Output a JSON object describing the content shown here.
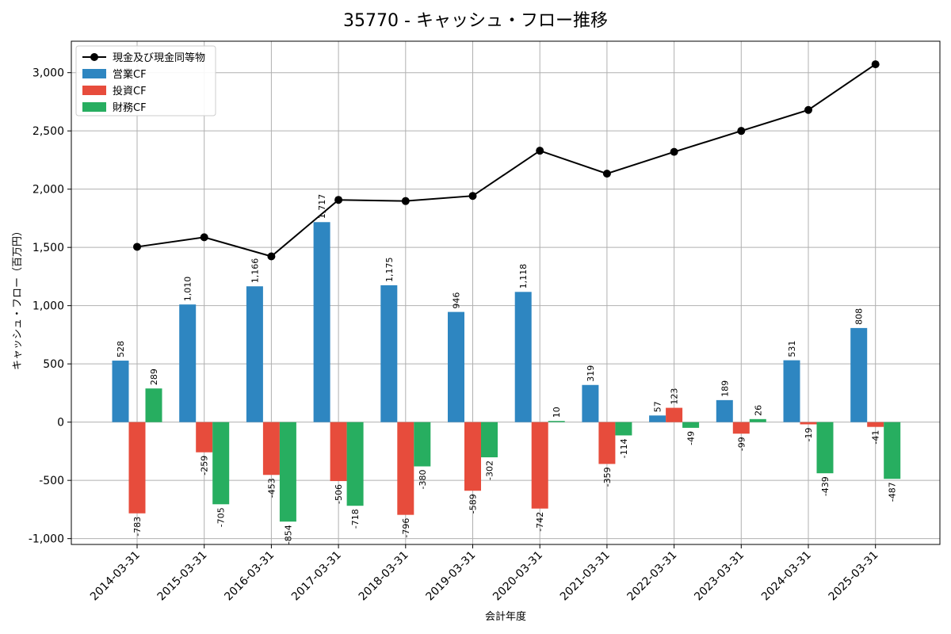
{
  "chart_data": {
    "type": "bar",
    "title": "35770 - キャッシュ・フロー推移",
    "xlabel": "会計年度",
    "ylabel": "キャッシュ・フロー（百万円）",
    "ylim": [
      -1050,
      3270
    ],
    "yticks": [
      -1000,
      -500,
      0,
      500,
      1000,
      1500,
      2000,
      2500,
      3000
    ],
    "ytick_labels": [
      "-1,000",
      "-500",
      "0",
      "500",
      "1,000",
      "1,500",
      "2,000",
      "2,500",
      "3,000"
    ],
    "grid": true,
    "legend_position": "top-left",
    "categories": [
      "2014-03-31",
      "2015-03-31",
      "2016-03-31",
      "2017-03-31",
      "2018-03-31",
      "2019-03-31",
      "2020-03-31",
      "2021-03-31",
      "2022-03-31",
      "2023-03-31",
      "2024-03-31",
      "2025-03-31"
    ],
    "line_series": {
      "name": "現金及び現金同等物",
      "color": "#000000",
      "values": [
        1505,
        1587,
        1423,
        1908,
        1898,
        1942,
        2330,
        2133,
        2320,
        2500,
        2680,
        3072
      ]
    },
    "series": [
      {
        "name": "営業CF",
        "color": "#2E86C1",
        "values": [
          528,
          1010,
          1166,
          1717,
          1175,
          946,
          1118,
          319,
          57,
          189,
          531,
          808
        ],
        "labels": [
          "528",
          "1,010",
          "1,166",
          "1,717",
          "1,175",
          "946",
          "1,118",
          "319",
          "57",
          "189",
          "531",
          "808"
        ]
      },
      {
        "name": "投資CF",
        "color": "#E74C3C",
        "values": [
          -783,
          -259,
          -453,
          -506,
          -796,
          -589,
          -742,
          -359,
          123,
          -99,
          -19,
          -41
        ],
        "labels": [
          "-783",
          "-259",
          "-453",
          "-506",
          "-796",
          "-589",
          "-742",
          "-359",
          "123",
          "-99",
          "-19",
          "-41"
        ]
      },
      {
        "name": "財務CF",
        "color": "#27AE60",
        "values": [
          289,
          -705,
          -854,
          -718,
          -380,
          -302,
          10,
          -114,
          -49,
          26,
          -439,
          -487
        ],
        "labels": [
          "289",
          "-705",
          "-854",
          "-718",
          "-380",
          "-302",
          "10",
          "-114",
          "-49",
          "26",
          "-439",
          "-487"
        ]
      }
    ]
  }
}
